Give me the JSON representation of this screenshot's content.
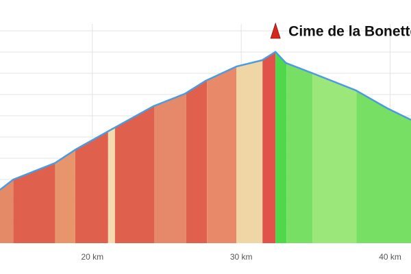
{
  "chart_data": {
    "type": "area",
    "x": [
      13.8,
      14.7,
      17.5,
      18.9,
      21.2,
      24.1,
      26.2,
      27.6,
      29.7,
      31.4,
      32.3,
      33.0,
      34.8,
      37.7,
      39.8,
      41.4
    ],
    "values": [
      1503,
      1600,
      1755,
      1884,
      2065,
      2290,
      2406,
      2529,
      2665,
      2723,
      2802,
      2697,
      2600,
      2439,
      2271,
      2161
    ],
    "color": "#4a9be0",
    "segments": [
      {
        "start": 13.8,
        "end": 14.7,
        "color": "#e58a66"
      },
      {
        "start": 14.7,
        "end": 17.5,
        "color": "#e0604e"
      },
      {
        "start": 17.5,
        "end": 18.85,
        "color": "#e8956c"
      },
      {
        "start": 18.85,
        "end": 21.06,
        "color": "#e0604e"
      },
      {
        "start": 21.06,
        "end": 21.52,
        "color": "#f5dcb0"
      },
      {
        "start": 21.52,
        "end": 24.15,
        "color": "#e0604e"
      },
      {
        "start": 24.15,
        "end": 26.31,
        "color": "#e5896a"
      },
      {
        "start": 26.31,
        "end": 27.7,
        "color": "#e0604e"
      },
      {
        "start": 27.7,
        "end": 29.68,
        "color": "#e8896a"
      },
      {
        "start": 29.68,
        "end": 31.43,
        "color": "#f0d6a4"
      },
      {
        "start": 31.43,
        "end": 32.3,
        "color": "#e0524a"
      },
      {
        "start": 32.3,
        "end": 33.04,
        "color": "#4fd94a"
      },
      {
        "start": 33.04,
        "end": 34.79,
        "color": "#77e064"
      },
      {
        "start": 34.79,
        "end": 37.74,
        "color": "#9be77a"
      },
      {
        "start": 37.74,
        "end": 41.4,
        "color": "#77e064"
      }
    ],
    "annotation": {
      "text": "Cime de la Bonette",
      "x": 32.3
    },
    "xlim": [
      13.8,
      41.4
    ],
    "xticks": [
      {
        "value": 20,
        "label": "20 km"
      },
      {
        "value": 30,
        "label": "30 km"
      },
      {
        "value": 40,
        "label": "40 km"
      }
    ],
    "ylim": [
      1000,
      3000
    ],
    "yticks": [
      1200,
      1400,
      1600,
      1800,
      2000,
      2200,
      2400,
      2600,
      2800,
      3000
    ],
    "grid": true
  }
}
